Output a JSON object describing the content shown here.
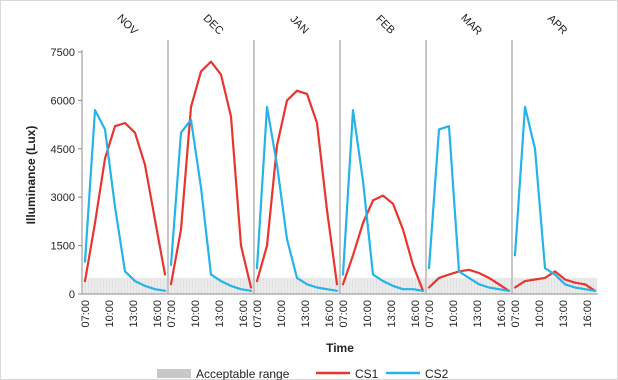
{
  "chart_data": {
    "type": "line",
    "title": "",
    "xlabel": "Time",
    "ylabel": "Illuminance (Lux)",
    "ylim": [
      0,
      7500
    ],
    "yticks": [
      0,
      1500,
      3000,
      4500,
      6000,
      7500
    ],
    "grid": false,
    "legend_position": "bottom",
    "months": [
      "NOV",
      "DEC",
      "JAN",
      "FEB",
      "MAR",
      "APR"
    ],
    "hours": [
      7,
      8,
      9,
      10,
      11,
      12,
      13,
      14,
      15,
      16,
      17
    ],
    "x_tick_labels": [
      "07:00",
      "10:00",
      "13:00",
      "16:00"
    ],
    "x_tick_hours": [
      7,
      10,
      13,
      16
    ],
    "acceptable_range": {
      "name": "Acceptable range",
      "min": 0,
      "max": 500,
      "color": "#c8c8c8"
    },
    "series": [
      {
        "name": "CS1",
        "color": "#e8352e",
        "segments": [
          [
            400,
            2200,
            4200,
            5200,
            5300,
            5000,
            4000,
            2300,
            600
          ],
          [
            300,
            2000,
            5800,
            6900,
            7200,
            6800,
            5500,
            1500,
            200
          ],
          [
            400,
            1500,
            4600,
            6000,
            6300,
            6200,
            5300,
            2600,
            300
          ],
          [
            300,
            1200,
            2200,
            2900,
            3050,
            2800,
            2000,
            900,
            100
          ],
          [
            200,
            500,
            600,
            700,
            750,
            650,
            500,
            300,
            100
          ],
          [
            200,
            400,
            450,
            500,
            700,
            450,
            350,
            300,
            100
          ]
        ]
      },
      {
        "name": "CS2",
        "color": "#25b3e8",
        "segments": [
          [
            1000,
            5700,
            5100,
            2700,
            700,
            400,
            250,
            150,
            100
          ],
          [
            900,
            5000,
            5400,
            3300,
            600,
            400,
            250,
            150,
            100
          ],
          [
            800,
            5800,
            4000,
            1700,
            500,
            300,
            200,
            150,
            100
          ],
          [
            600,
            5700,
            3500,
            600,
            400,
            250,
            150,
            150,
            100
          ],
          [
            800,
            5100,
            5200,
            700,
            500,
            300,
            200,
            150,
            100
          ],
          [
            1200,
            5800,
            4500,
            800,
            600,
            300,
            200,
            150,
            100
          ]
        ]
      }
    ],
    "legend": [
      {
        "label": "Acceptable range",
        "kind": "band",
        "color": "#c8c8c8"
      },
      {
        "label": "CS1",
        "kind": "line",
        "color": "#e8352e"
      },
      {
        "label": "CS2",
        "kind": "line",
        "color": "#25b3e8"
      }
    ]
  }
}
